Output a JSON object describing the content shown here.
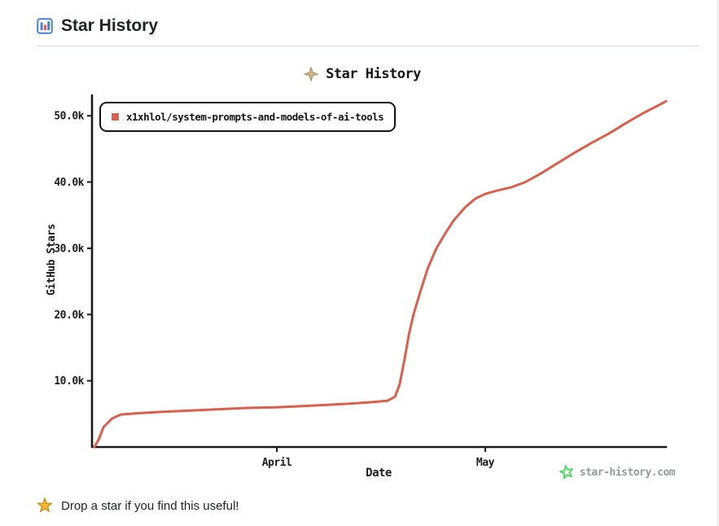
{
  "page": {
    "header": {
      "title": "Star History"
    },
    "watermark": {
      "text": "star-history.com"
    },
    "footer": {
      "text": "Drop a star if you find this useful!"
    }
  },
  "colors": {
    "line": "#d9604c",
    "axis": "#1a1a1a",
    "sparkle": "#d2b48c",
    "sparkle_edge": "#a98c66",
    "watermark_star": "#41d95d",
    "watermark_text": "#9199a1",
    "footer_star": "#f6b92c",
    "footer_star_edge": "#c9901b",
    "header_icon_blue": "#4a7edd",
    "header_icon_red": "#e25b4a"
  },
  "chart_data": {
    "type": "line",
    "title": "Star History",
    "xlabel": "Date",
    "ylabel": "GitHub Stars",
    "legend_position": "top-left",
    "grid": false,
    "ylim": [
      0,
      53100
    ],
    "y_ticks": [
      {
        "label": "10.0k",
        "value": 10000
      },
      {
        "label": "20.0k",
        "value": 20000
      },
      {
        "label": "30.0k",
        "value": 30000
      },
      {
        "label": "40.0k",
        "value": 40000
      },
      {
        "label": "50.0k",
        "value": 50000
      }
    ],
    "x_ticks": [
      {
        "label": "April",
        "frac": 0.322
      },
      {
        "label": "May",
        "frac": 0.685
      }
    ],
    "series": [
      {
        "name": "x1xhlol/system-prompts-and-models-of-ai-tools",
        "color": "#d9604c",
        "points": [
          [
            0.004,
            0
          ],
          [
            0.012,
            1200
          ],
          [
            0.02,
            3000
          ],
          [
            0.035,
            4300
          ],
          [
            0.05,
            4900
          ],
          [
            0.08,
            5100
          ],
          [
            0.12,
            5300
          ],
          [
            0.17,
            5500
          ],
          [
            0.22,
            5700
          ],
          [
            0.27,
            5900
          ],
          [
            0.32,
            6000
          ],
          [
            0.37,
            6200
          ],
          [
            0.42,
            6400
          ],
          [
            0.46,
            6600
          ],
          [
            0.49,
            6800
          ],
          [
            0.515,
            7000
          ],
          [
            0.528,
            7600
          ],
          [
            0.536,
            9500
          ],
          [
            0.545,
            13500
          ],
          [
            0.552,
            17000
          ],
          [
            0.56,
            20000
          ],
          [
            0.572,
            23500
          ],
          [
            0.585,
            27000
          ],
          [
            0.6,
            30000
          ],
          [
            0.615,
            32200
          ],
          [
            0.63,
            34200
          ],
          [
            0.65,
            36200
          ],
          [
            0.668,
            37500
          ],
          [
            0.685,
            38200
          ],
          [
            0.705,
            38700
          ],
          [
            0.73,
            39200
          ],
          [
            0.755,
            40000
          ],
          [
            0.78,
            41200
          ],
          [
            0.81,
            42800
          ],
          [
            0.84,
            44400
          ],
          [
            0.87,
            45900
          ],
          [
            0.9,
            47300
          ],
          [
            0.93,
            48900
          ],
          [
            0.96,
            50400
          ],
          [
            0.985,
            51500
          ],
          [
            1.0,
            52200
          ]
        ]
      }
    ]
  }
}
